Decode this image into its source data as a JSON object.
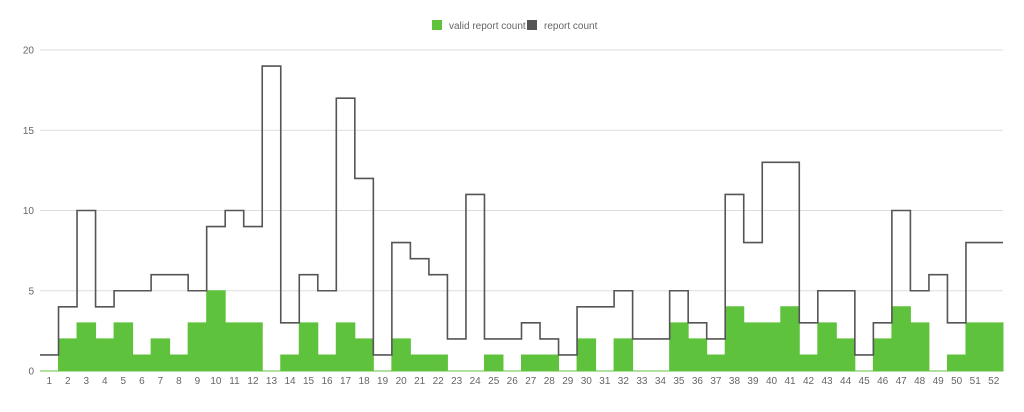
{
  "chart_data": {
    "type": "area",
    "step": true,
    "categories": [
      "1",
      "2",
      "3",
      "4",
      "5",
      "6",
      "7",
      "8",
      "9",
      "10",
      "11",
      "12",
      "13",
      "14",
      "15",
      "16",
      "17",
      "18",
      "19",
      "20",
      "21",
      "22",
      "23",
      "24",
      "25",
      "26",
      "27",
      "28",
      "29",
      "30",
      "31",
      "32",
      "33",
      "34",
      "35",
      "36",
      "37",
      "38",
      "39",
      "40",
      "41",
      "42",
      "43",
      "44",
      "45",
      "46",
      "47",
      "48",
      "49",
      "50",
      "51",
      "52"
    ],
    "series": [
      {
        "name": "valid report count",
        "color": "#5fc23d",
        "style": "filled-step",
        "values": [
          0,
          2,
          3,
          2,
          3,
          1,
          2,
          1,
          3,
          5,
          3,
          3,
          0,
          1,
          3,
          1,
          3,
          2,
          0,
          2,
          1,
          1,
          0,
          0,
          1,
          0,
          1,
          1,
          0,
          2,
          0,
          2,
          0,
          0,
          3,
          2,
          1,
          4,
          3,
          3,
          4,
          1,
          3,
          2,
          0,
          2,
          4,
          3,
          0,
          1,
          3,
          3
        ]
      },
      {
        "name": "report count",
        "color": "#555555",
        "style": "line-step",
        "values": [
          1,
          4,
          10,
          4,
          5,
          5,
          6,
          6,
          5,
          9,
          10,
          9,
          19,
          3,
          6,
          5,
          17,
          12,
          1,
          8,
          7,
          6,
          2,
          11,
          2,
          2,
          3,
          2,
          1,
          4,
          4,
          5,
          2,
          2,
          5,
          3,
          2,
          11,
          8,
          13,
          13,
          3,
          5,
          5,
          1,
          3,
          10,
          5,
          6,
          3,
          8,
          8
        ]
      }
    ],
    "ylim": [
      0,
      20
    ],
    "yticks": [
      "0",
      "5",
      "10",
      "15",
      "20"
    ],
    "grid": true,
    "legend_position": "top-center"
  }
}
